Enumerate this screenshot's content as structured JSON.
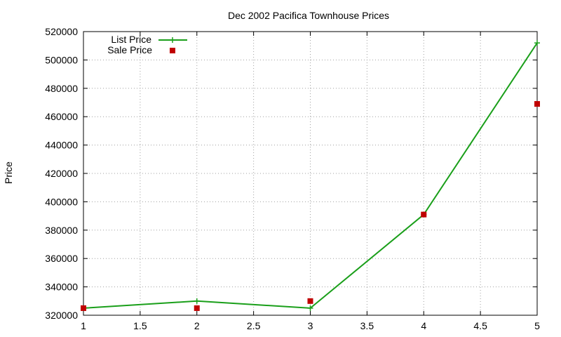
{
  "chart_data": {
    "type": "line",
    "title": "Dec 2002 Pacifica Townhouse Prices",
    "xlabel": "",
    "ylabel": "Price",
    "xlim": [
      1,
      5
    ],
    "ylim": [
      320000,
      520000
    ],
    "x_ticks": [
      "1",
      "1.5",
      "2",
      "2.5",
      "3",
      "3.5",
      "4",
      "4.5",
      "5"
    ],
    "y_ticks": [
      "320000",
      "340000",
      "360000",
      "380000",
      "400000",
      "420000",
      "440000",
      "460000",
      "480000",
      "500000",
      "520000"
    ],
    "grid": true,
    "legend_position": "top-left",
    "series": [
      {
        "name": "List Price",
        "style": "linespoints",
        "color": "#1a9f1a",
        "points": [
          {
            "x": 1,
            "y": 325000
          },
          {
            "x": 2,
            "y": 330000
          },
          {
            "x": 3,
            "y": 325000
          },
          {
            "x": 4,
            "y": 391000
          },
          {
            "x": 5,
            "y": 512000
          }
        ]
      },
      {
        "name": "Sale Price",
        "style": "points",
        "color": "#c00000",
        "points": [
          {
            "x": 1,
            "y": 325000
          },
          {
            "x": 2,
            "y": 325000
          },
          {
            "x": 3,
            "y": 330000
          },
          {
            "x": 4,
            "y": 391000
          },
          {
            "x": 5,
            "y": 469000
          }
        ]
      }
    ]
  }
}
